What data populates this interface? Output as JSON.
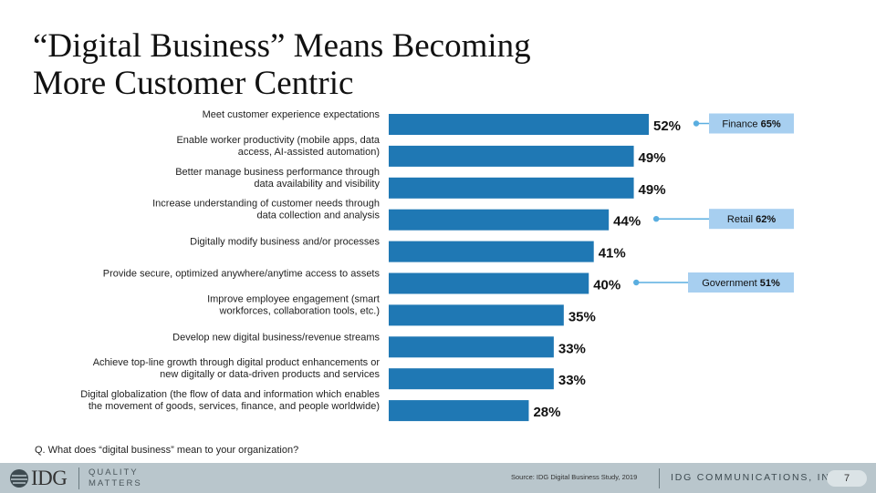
{
  "title_lines": [
    "“Digital Business” Means Becoming",
    "More Customer Centric"
  ],
  "question": "Q. What does “digital business” mean to your organization?",
  "footer": {
    "logo_text": "IDG",
    "tagline": [
      "QUALITY",
      "MATTERS"
    ],
    "source": "Source: IDG Digital Business Study, 2019",
    "company": "IDG COMMUNICATIONS, INC.",
    "page_number": "7"
  },
  "colors": {
    "bar": "#1f78b4",
    "callout_fill": "#a7cff0",
    "callout_line": "#5aaee0",
    "footer": "#b9c6cc"
  },
  "chart_data": {
    "type": "bar",
    "orientation": "horizontal",
    "categories": [
      [
        "Meet customer experience expectations"
      ],
      [
        "Enable worker productivity (mobile apps, data",
        "access, AI-assisted automation)"
      ],
      [
        "Better manage business performance through",
        "data availability and visibility"
      ],
      [
        "Increase understanding of customer needs through",
        "data collection and analysis"
      ],
      [
        "Digitally modify business and/or processes"
      ],
      [
        "Provide secure, optimized anywhere/anytime access to assets"
      ],
      [
        "Improve employee engagement (smart",
        "workforces, collaboration tools, etc.)"
      ],
      [
        "Develop new digital business/revenue streams"
      ],
      [
        "Achieve top-line growth through digital product enhancements or",
        "new digitally or data-driven products and services"
      ],
      [
        "Digital globalization (the flow of data and information which enables",
        "the movement of goods, services, finance, and people worldwide)"
      ]
    ],
    "values": [
      52,
      49,
      49,
      44,
      41,
      40,
      35,
      33,
      33,
      28
    ],
    "value_suffix": "%",
    "xlim": [
      0,
      100
    ],
    "grid": false,
    "callouts": [
      {
        "bar_index": 0,
        "label": "Finance",
        "value": "65%"
      },
      {
        "bar_index": 3,
        "label": "Retail",
        "value": "62%"
      },
      {
        "bar_index": 5,
        "label": "Government",
        "value": "51%"
      }
    ]
  }
}
